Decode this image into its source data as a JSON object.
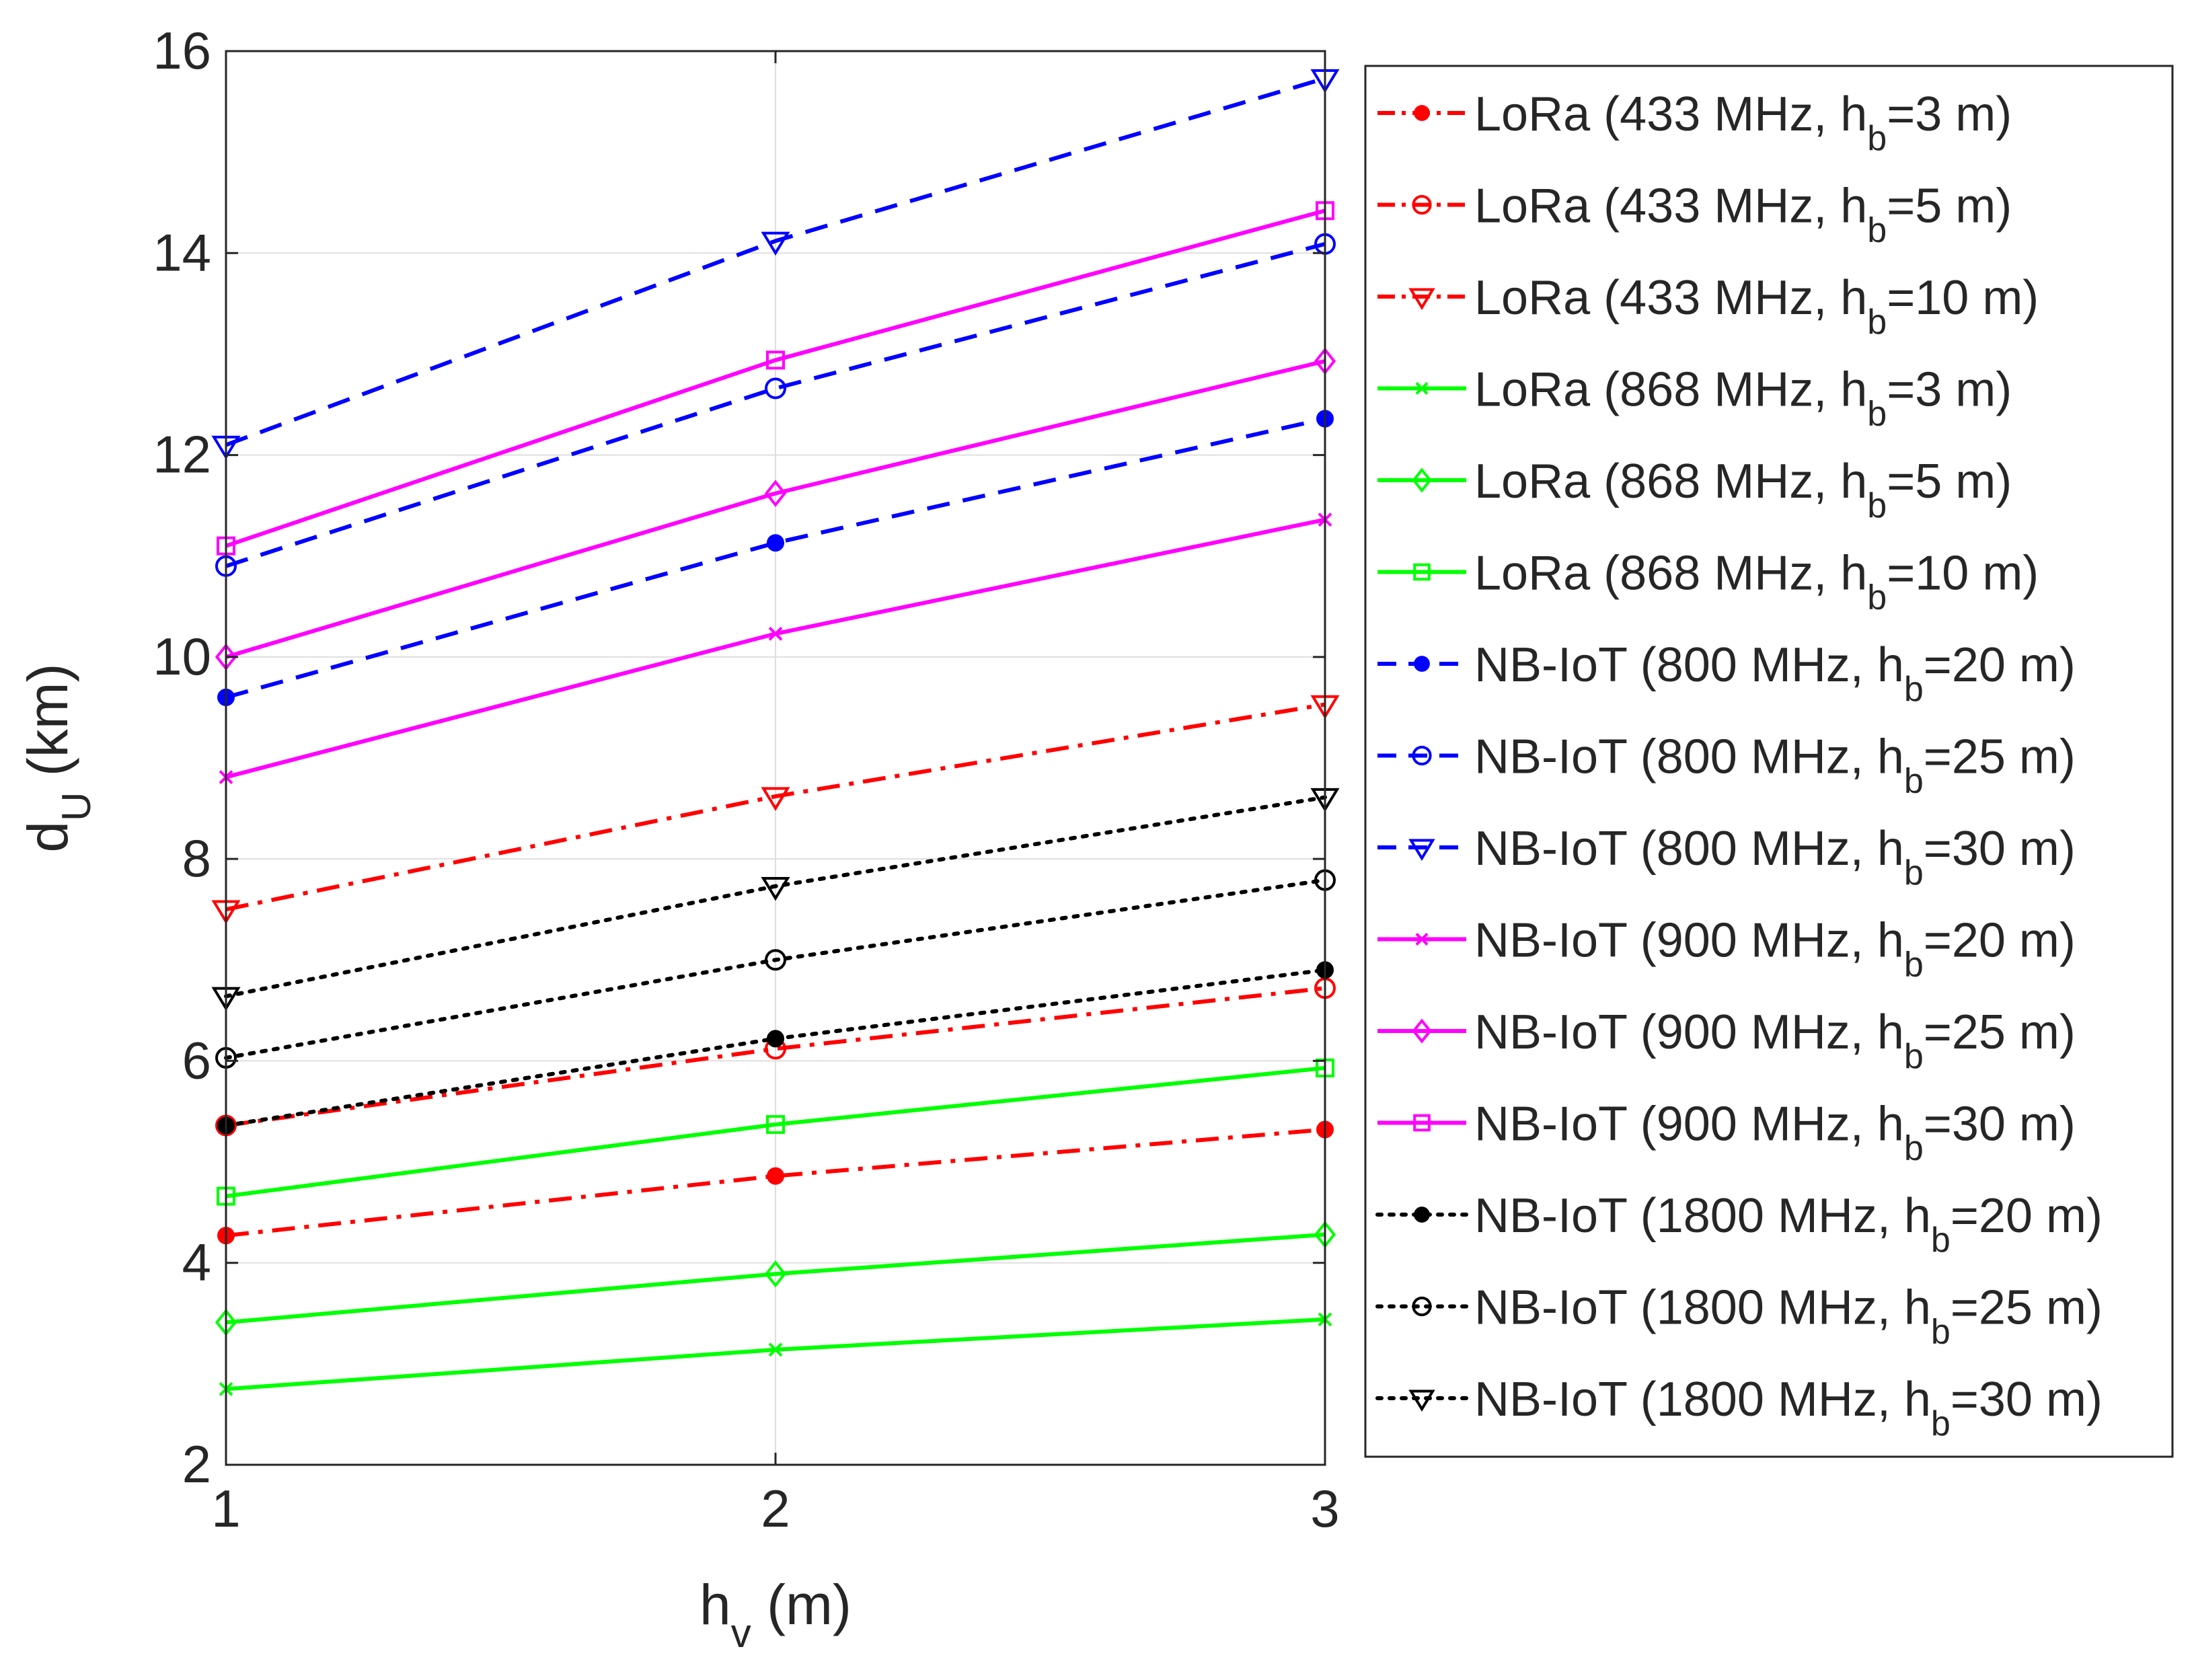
{
  "chart_data": {
    "type": "line",
    "title": "",
    "xlabel": {
      "main": "h",
      "sub": "v",
      "rest": " (m)"
    },
    "ylabel": {
      "main": "d",
      "sub": "U",
      "rest": " (km)"
    },
    "x": [
      1,
      2,
      3
    ],
    "xlim": [
      1,
      3
    ],
    "ylim": [
      2,
      16
    ],
    "xticks": [
      1,
      2,
      3
    ],
    "yticks": [
      2,
      4,
      6,
      8,
      10,
      12,
      14,
      16
    ],
    "grid": true,
    "legend_position": "outside-right",
    "series": [
      {
        "name": "LoRa (433 MHz, h_b=3 m)",
        "label": {
          "pre": "LoRa (433 MHz, h",
          "sub": "b",
          "post": "=3 m)"
        },
        "values": [
          4.27,
          4.86,
          5.32
        ],
        "color": "#ff0000",
        "line_style": "dashdot",
        "marker": "filled-circle"
      },
      {
        "name": "LoRa (433 MHz, h_b=5 m)",
        "label": {
          "pre": "LoRa (433 MHz, h",
          "sub": "b",
          "post": "=5 m)"
        },
        "values": [
          5.36,
          6.12,
          6.72
        ],
        "color": "#ff0000",
        "line_style": "dashdot",
        "marker": "open-circle"
      },
      {
        "name": "LoRa (433 MHz, h_b=10 m)",
        "label": {
          "pre": "LoRa (433 MHz, h",
          "sub": "b",
          "post": "=10 m)"
        },
        "values": [
          7.5,
          8.62,
          9.53
        ],
        "color": "#ff0000",
        "line_style": "dashdot",
        "marker": "triangle-down"
      },
      {
        "name": "LoRa (868 MHz, h_b=3 m)",
        "label": {
          "pre": "LoRa (868 MHz, h",
          "sub": "b",
          "post": "=3 m)"
        },
        "values": [
          2.75,
          3.14,
          3.44
        ],
        "color": "#00ff00",
        "line_style": "solid",
        "marker": "x"
      },
      {
        "name": "LoRa (868 MHz, h_b=5 m)",
        "label": {
          "pre": "LoRa (868 MHz, h",
          "sub": "b",
          "post": "=5 m)"
        },
        "values": [
          3.41,
          3.89,
          4.28
        ],
        "color": "#00ff00",
        "line_style": "solid",
        "marker": "diamond"
      },
      {
        "name": "LoRa (868 MHz, h_b=10 m)",
        "label": {
          "pre": "LoRa (868 MHz, h",
          "sub": "b",
          "post": "=10 m)"
        },
        "values": [
          4.66,
          5.37,
          5.93
        ],
        "color": "#00ff00",
        "line_style": "solid",
        "marker": "square"
      },
      {
        "name": "NB-IoT (800 MHz, h_b=20 m)",
        "label": {
          "pre": "NB-IoT (800 MHz, h",
          "sub": "b",
          "post": "=20 m)"
        },
        "values": [
          9.6,
          11.13,
          12.36
        ],
        "color": "#0000ff",
        "line_style": "dashed",
        "marker": "filled-circle"
      },
      {
        "name": "NB-IoT (800 MHz, h_b=25 m)",
        "label": {
          "pre": "NB-IoT (800 MHz, h",
          "sub": "b",
          "post": "=25 m)"
        },
        "values": [
          10.9,
          12.66,
          14.09
        ],
        "color": "#0000ff",
        "line_style": "dashed",
        "marker": "open-circle"
      },
      {
        "name": "NB-IoT (800 MHz, h_b=30 m)",
        "label": {
          "pre": "NB-IoT (800 MHz, h",
          "sub": "b",
          "post": "=30 m)"
        },
        "values": [
          12.1,
          14.12,
          15.73
        ],
        "color": "#0000ff",
        "line_style": "dashed",
        "marker": "triangle-down"
      },
      {
        "name": "NB-IoT (900 MHz, h_b=20 m)",
        "label": {
          "pre": "NB-IoT (900 MHz, h",
          "sub": "b",
          "post": "=20 m)"
        },
        "values": [
          8.81,
          10.23,
          11.36
        ],
        "color": "#ff00ff",
        "line_style": "solid",
        "marker": "x"
      },
      {
        "name": "NB-IoT (900 MHz, h_b=25 m)",
        "label": {
          "pre": "NB-IoT (900 MHz, h",
          "sub": "b",
          "post": "=25 m)"
        },
        "values": [
          10.0,
          11.62,
          12.93
        ],
        "color": "#ff00ff",
        "line_style": "solid",
        "marker": "diamond"
      },
      {
        "name": "NB-IoT (900 MHz, h_b=30 m)",
        "label": {
          "pre": "NB-IoT (900 MHz, h",
          "sub": "b",
          "post": "=30 m)"
        },
        "values": [
          11.1,
          12.94,
          14.42
        ],
        "color": "#ff00ff",
        "line_style": "solid",
        "marker": "square"
      },
      {
        "name": "NB-IoT (1800 MHz, h_b=20 m)",
        "label": {
          "pre": "NB-IoT (1800 MHz, h",
          "sub": "b",
          "post": "=20 m)"
        },
        "values": [
          5.36,
          6.22,
          6.9
        ],
        "color": "#000000",
        "line_style": "dotted",
        "marker": "filled-circle"
      },
      {
        "name": "NB-IoT (1800 MHz, h_b=25 m)",
        "label": {
          "pre": "NB-IoT (1800 MHz, h",
          "sub": "b",
          "post": "=25 m)"
        },
        "values": [
          6.03,
          7.0,
          7.79
        ],
        "color": "#000000",
        "line_style": "dotted",
        "marker": "open-circle"
      },
      {
        "name": "NB-IoT (1800 MHz, h_b=30 m)",
        "label": {
          "pre": "NB-IoT (1800 MHz, h",
          "sub": "b",
          "post": "=30 m)"
        },
        "values": [
          6.64,
          7.73,
          8.61
        ],
        "color": "#000000",
        "line_style": "dotted",
        "marker": "triangle-down"
      }
    ]
  }
}
